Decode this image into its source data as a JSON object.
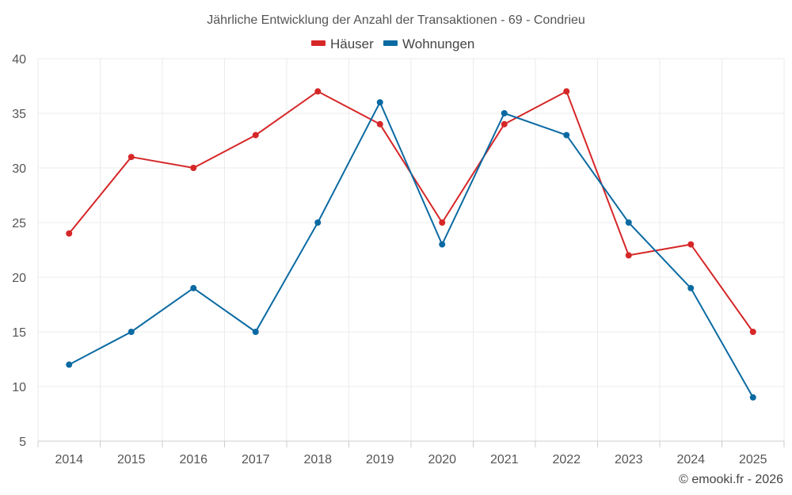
{
  "chart_data": {
    "type": "line",
    "title": "Jährliche Entwicklung der Anzahl der Transaktionen - 69 - Condrieu",
    "categories": [
      "2014",
      "2015",
      "2016",
      "2017",
      "2018",
      "2019",
      "2020",
      "2021",
      "2022",
      "2023",
      "2024",
      "2025"
    ],
    "series": [
      {
        "name": "Häuser",
        "color": "#d62728",
        "values": [
          24,
          31,
          30,
          33,
          37,
          34,
          25,
          34,
          37,
          22,
          23,
          15
        ]
      },
      {
        "name": "Wohnungen",
        "color": "#0b6aa2",
        "values": [
          12,
          15,
          19,
          15,
          25,
          36,
          23,
          35,
          33,
          25,
          19,
          9
        ]
      }
    ],
    "ylim": [
      5,
      40
    ],
    "yticks": [
      5,
      10,
      15,
      20,
      25,
      30,
      35,
      40
    ],
    "grid": true,
    "legend": "top-center",
    "xlabel": "",
    "ylabel": ""
  },
  "credit": "© emooki.fr - 2026"
}
